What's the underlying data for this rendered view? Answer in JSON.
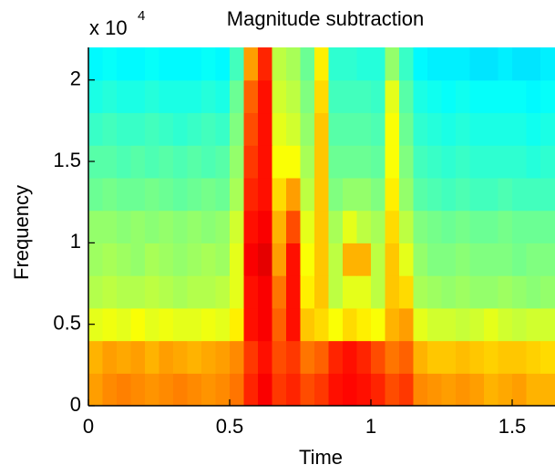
{
  "chart_data": {
    "type": "heatmap",
    "title": "Magnitude subtraction",
    "xlabel": "Time",
    "ylabel": "Frequency",
    "y_multiplier": "x 10",
    "y_exponent": "4",
    "colormap": "jet",
    "clim": [
      0,
      1
    ],
    "xlim": [
      0,
      1.65
    ],
    "ylim": [
      0,
      22000
    ],
    "xticks": [
      0,
      0.5,
      1,
      1.5
    ],
    "yticks": [
      {
        "value": 0,
        "label": "0"
      },
      {
        "value": 5000,
        "label": "0.5"
      },
      {
        "value": 10000,
        "label": "1"
      },
      {
        "value": 15000,
        "label": "1.5"
      },
      {
        "value": 20000,
        "label": "2"
      }
    ],
    "x": [
      0.025,
      0.075,
      0.125,
      0.175,
      0.225,
      0.275,
      0.325,
      0.375,
      0.425,
      0.475,
      0.525,
      0.575,
      0.625,
      0.675,
      0.725,
      0.775,
      0.825,
      0.875,
      0.925,
      0.975,
      1.025,
      1.075,
      1.125,
      1.175,
      1.225,
      1.275,
      1.325,
      1.375,
      1.425,
      1.475,
      1.525,
      1.575,
      1.625
    ],
    "y": [
      1000,
      3000,
      5000,
      7000,
      9000,
      11000,
      13000,
      15000,
      17000,
      19000,
      21000
    ],
    "z": [
      [
        0.72,
        0.74,
        0.75,
        0.74,
        0.73,
        0.74,
        0.75,
        0.74,
        0.73,
        0.74,
        0.76,
        0.84,
        0.88,
        0.82,
        0.84,
        0.8,
        0.82,
        0.86,
        0.87,
        0.86,
        0.84,
        0.8,
        0.82,
        0.74,
        0.73,
        0.72,
        0.73,
        0.72,
        0.7,
        0.71,
        0.72,
        0.7,
        0.7
      ],
      [
        0.7,
        0.72,
        0.71,
        0.72,
        0.7,
        0.72,
        0.71,
        0.7,
        0.71,
        0.72,
        0.74,
        0.82,
        0.86,
        0.8,
        0.82,
        0.76,
        0.78,
        0.84,
        0.86,
        0.84,
        0.8,
        0.76,
        0.78,
        0.7,
        0.68,
        0.68,
        0.69,
        0.68,
        0.67,
        0.68,
        0.68,
        0.67,
        0.66
      ],
      [
        0.6,
        0.61,
        0.6,
        0.62,
        0.6,
        0.61,
        0.6,
        0.6,
        0.61,
        0.6,
        0.64,
        0.86,
        0.88,
        0.78,
        0.86,
        0.68,
        0.66,
        0.62,
        0.66,
        0.64,
        0.62,
        0.7,
        0.72,
        0.6,
        0.58,
        0.58,
        0.57,
        0.58,
        0.6,
        0.58,
        0.57,
        0.58,
        0.58
      ],
      [
        0.55,
        0.56,
        0.55,
        0.55,
        0.56,
        0.55,
        0.54,
        0.55,
        0.55,
        0.56,
        0.6,
        0.86,
        0.88,
        0.76,
        0.86,
        0.64,
        0.68,
        0.56,
        0.6,
        0.6,
        0.56,
        0.68,
        0.66,
        0.54,
        0.53,
        0.52,
        0.53,
        0.52,
        0.52,
        0.53,
        0.52,
        0.51,
        0.52
      ],
      [
        0.53,
        0.54,
        0.53,
        0.52,
        0.54,
        0.53,
        0.52,
        0.53,
        0.54,
        0.53,
        0.6,
        0.88,
        0.9,
        0.72,
        0.86,
        0.62,
        0.68,
        0.56,
        0.7,
        0.7,
        0.56,
        0.68,
        0.6,
        0.52,
        0.5,
        0.5,
        0.51,
        0.5,
        0.5,
        0.5,
        0.49,
        0.5,
        0.5
      ],
      [
        0.52,
        0.52,
        0.51,
        0.52,
        0.51,
        0.52,
        0.51,
        0.52,
        0.51,
        0.52,
        0.58,
        0.86,
        0.88,
        0.7,
        0.8,
        0.6,
        0.68,
        0.54,
        0.6,
        0.56,
        0.54,
        0.66,
        0.56,
        0.5,
        0.49,
        0.48,
        0.49,
        0.48,
        0.48,
        0.49,
        0.48,
        0.48,
        0.48
      ],
      [
        0.48,
        0.49,
        0.48,
        0.48,
        0.49,
        0.48,
        0.47,
        0.48,
        0.49,
        0.48,
        0.54,
        0.84,
        0.86,
        0.66,
        0.72,
        0.56,
        0.68,
        0.5,
        0.52,
        0.52,
        0.5,
        0.64,
        0.52,
        0.46,
        0.45,
        0.44,
        0.45,
        0.44,
        0.44,
        0.45,
        0.44,
        0.44,
        0.44
      ],
      [
        0.46,
        0.46,
        0.45,
        0.46,
        0.45,
        0.46,
        0.45,
        0.46,
        0.45,
        0.46,
        0.52,
        0.82,
        0.86,
        0.62,
        0.62,
        0.54,
        0.68,
        0.48,
        0.48,
        0.48,
        0.47,
        0.62,
        0.5,
        0.44,
        0.43,
        0.42,
        0.43,
        0.42,
        0.42,
        0.42,
        0.42,
        0.41,
        0.42
      ],
      [
        0.43,
        0.44,
        0.43,
        0.43,
        0.44,
        0.43,
        0.42,
        0.43,
        0.44,
        0.43,
        0.5,
        0.8,
        0.86,
        0.6,
        0.58,
        0.52,
        0.68,
        0.46,
        0.46,
        0.46,
        0.45,
        0.62,
        0.48,
        0.42,
        0.41,
        0.4,
        0.41,
        0.4,
        0.4,
        0.4,
        0.4,
        0.39,
        0.4
      ],
      [
        0.4,
        0.41,
        0.4,
        0.4,
        0.41,
        0.4,
        0.4,
        0.4,
        0.41,
        0.4,
        0.48,
        0.78,
        0.86,
        0.58,
        0.56,
        0.5,
        0.66,
        0.44,
        0.44,
        0.44,
        0.43,
        0.6,
        0.46,
        0.4,
        0.39,
        0.38,
        0.39,
        0.38,
        0.38,
        0.38,
        0.38,
        0.37,
        0.38
      ],
      [
        0.37,
        0.38,
        0.37,
        0.37,
        0.38,
        0.37,
        0.37,
        0.37,
        0.38,
        0.37,
        0.44,
        0.72,
        0.84,
        0.56,
        0.54,
        0.48,
        0.64,
        0.42,
        0.42,
        0.41,
        0.41,
        0.52,
        0.43,
        0.37,
        0.36,
        0.36,
        0.36,
        0.35,
        0.35,
        0.36,
        0.35,
        0.35,
        0.36
      ]
    ]
  }
}
